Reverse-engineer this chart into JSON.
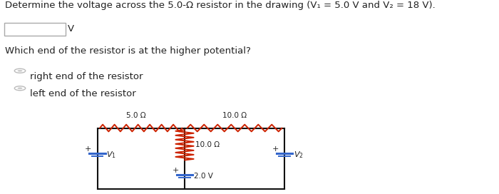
{
  "title_text": "Determine the voltage across the 5.0-Ω resistor in the drawing (V₁ = 5.0 V and V₂ = 18 V).",
  "input_box_label": "V",
  "question2": "Which end of the resistor is at the higher potential?",
  "option1": "right end of the resistor",
  "option2": "left end of the resistor",
  "resistor_color": "#cc2200",
  "wire_color": "#111111",
  "battery_blue": "#3366cc",
  "text_dark": "#222222",
  "bg_color": "#ffffff",
  "font_size_title": 9.5,
  "font_size_body": 9.5,
  "font_size_circuit": 7.5,
  "cL": 0.195,
  "cR": 0.57,
  "cT": 0.34,
  "cB": 0.025,
  "cMX": 0.37
}
